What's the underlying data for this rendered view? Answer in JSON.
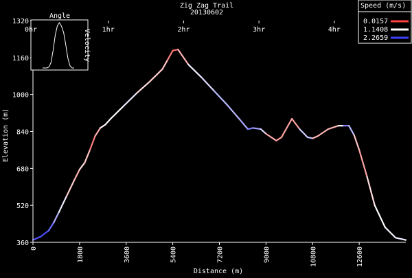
{
  "chart_data": {
    "type": "line",
    "title": "Zig Zag Trail",
    "subtitle": "20130602",
    "xlabel": "Distance (m)",
    "ylabel": "Elevation (m)",
    "xlim": [
      0,
      14400
    ],
    "ylim": [
      360,
      1320
    ],
    "x_ticks": [
      0,
      1800,
      3600,
      5400,
      7200,
      9000,
      10800,
      12600
    ],
    "y_ticks": [
      360,
      520,
      680,
      840,
      1000,
      1160,
      1320
    ],
    "time_ticks": [
      "0hr",
      "1hr",
      "2hr",
      "3hr",
      "4hr"
    ],
    "time_tick_hours": [
      0,
      1,
      2,
      3,
      4
    ],
    "time_axis_max_hours": 4.95,
    "grid": false,
    "legend": {
      "title": "Speed (m/s)",
      "placement": "top-right",
      "entries": [
        {
          "label": "0.0157",
          "color": "#ff4040"
        },
        {
          "label": "1.1408",
          "color": "#ffffff"
        },
        {
          "label": "2.2659",
          "color": "#4040ff"
        }
      ]
    },
    "inset": {
      "title": "Angle",
      "ylabel": "Velocity",
      "profile": [
        0.0,
        0.0,
        0.0,
        0.02,
        0.12,
        0.38,
        0.72,
        0.93,
        1.0,
        0.92,
        0.78,
        0.52,
        0.22,
        0.05,
        0.0,
        0.0
      ]
    },
    "series": [
      {
        "x": [
          0,
          300,
          600,
          800,
          1000,
          1300,
          1600,
          1800,
          2000,
          2200,
          2400,
          2600,
          2800,
          3000,
          3500,
          4000,
          4500,
          5000,
          5200,
          5400,
          5600,
          6000,
          6500,
          7000,
          7500,
          8000,
          8300,
          8500,
          8800,
          9000,
          9400,
          9600,
          10000,
          10300,
          10600,
          10800,
          11000,
          11400,
          11800,
          12000,
          12200,
          12400,
          12600,
          12900,
          13200,
          13600,
          14000,
          14400
        ],
        "y": [
          370,
          385,
          410,
          445,
          490,
          560,
          630,
          675,
          705,
          760,
          820,
          855,
          870,
          895,
          950,
          1005,
          1055,
          1110,
          1150,
          1190,
          1195,
          1130,
          1075,
          1015,
          955,
          890,
          850,
          855,
          850,
          830,
          800,
          815,
          895,
          850,
          815,
          810,
          820,
          850,
          865,
          865,
          865,
          825,
          760,
          645,
          520,
          425,
          380,
          370
        ],
        "speed": [
          2.1,
          2.2,
          2.2,
          1.8,
          1.4,
          1.1,
          0.6,
          0.8,
          1.1,
          0.5,
          0.3,
          1.0,
          1.1,
          1.1,
          1.2,
          1.3,
          0.6,
          1.1,
          0.5,
          0.3,
          0.3,
          1.1,
          1.4,
          1.3,
          1.8,
          1.3,
          2.0,
          1.8,
          1.6,
          1.1,
          0.2,
          0.9,
          0.3,
          0.9,
          2.0,
          1.0,
          0.5,
          0.9,
          0.5,
          1.8,
          2.0,
          1.1,
          0.5,
          0.7,
          1.2,
          1.1,
          1.3,
          1.2
        ]
      }
    ]
  }
}
